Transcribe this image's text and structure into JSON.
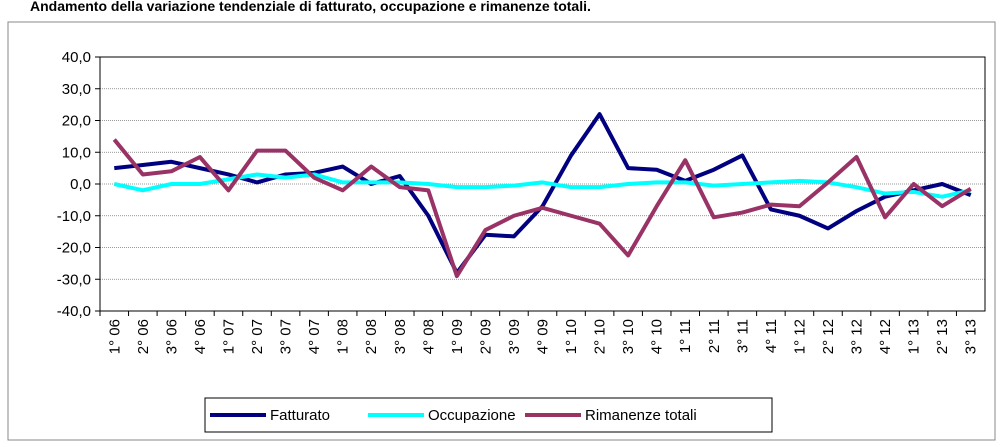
{
  "chart_data": {
    "type": "line",
    "title": "Andamento della variazione tendenziale di fatturato, occupazione e rimanenze totali.",
    "categories": [
      "1° 06",
      "2° 06",
      "3° 06",
      "4° 06",
      "1° 07",
      "2° 07",
      "3° 07",
      "4° 07",
      "1° 08",
      "2° 08",
      "3° 08",
      "4° 08",
      "1° 09",
      "2° 09",
      "3° 09",
      "4° 09",
      "1° 10",
      "2° 10",
      "3° 10",
      "4° 10",
      "1° 11",
      "2° 11",
      "3° 11",
      "4° 11",
      "1° 12",
      "2° 12",
      "3° 12",
      "4° 12",
      "1° 13",
      "2° 13",
      "3° 13"
    ],
    "series": [
      {
        "name": "Fatturato",
        "color": "#000080",
        "values": [
          5,
          6,
          7,
          5,
          3,
          0.5,
          3,
          3.5,
          5.5,
          0,
          2.5,
          -10,
          -28,
          -16,
          -16.5,
          -7,
          9,
          22,
          5,
          4.5,
          1,
          4.5,
          9,
          -8,
          -10,
          -14,
          -8.5,
          -4,
          -2,
          0,
          -3.5
        ]
      },
      {
        "name": "Occupazione",
        "color": "#00ffff",
        "values": [
          0,
          -2,
          0,
          0,
          1.5,
          3,
          2,
          3,
          0.5,
          0.5,
          0.5,
          0,
          -1,
          -1,
          -0.5,
          0.5,
          -1,
          -1,
          0,
          0.5,
          0.5,
          -0.5,
          0,
          0.5,
          1,
          0.5,
          -1,
          -3,
          -2.5,
          -4,
          -2
        ]
      },
      {
        "name": "Rimanenze totali",
        "color": "#993366",
        "values": [
          14,
          3,
          4,
          8.5,
          -2,
          10.5,
          10.5,
          2,
          -2,
          5.5,
          -1,
          -2,
          -29,
          -14.5,
          -10,
          -7.5,
          -10,
          -12.5,
          -22.5,
          -7,
          7.5,
          -10.5,
          -9,
          -6.5,
          -7,
          0.5,
          8.5,
          -10.5,
          0,
          -7,
          -1.5
        ]
      }
    ],
    "ylim": [
      -40,
      40
    ],
    "yticks": [
      {
        "value": -40,
        "label": "-40,0"
      },
      {
        "value": -30,
        "label": "-30,0"
      },
      {
        "value": -20,
        "label": "-20,0"
      },
      {
        "value": -10,
        "label": "-10,0"
      },
      {
        "value": 0,
        "label": "0,0"
      },
      {
        "value": 10,
        "label": "10,0"
      },
      {
        "value": 20,
        "label": "20,0"
      },
      {
        "value": 30,
        "label": "30,0"
      },
      {
        "value": 40,
        "label": "40,0"
      }
    ],
    "grid": true
  }
}
